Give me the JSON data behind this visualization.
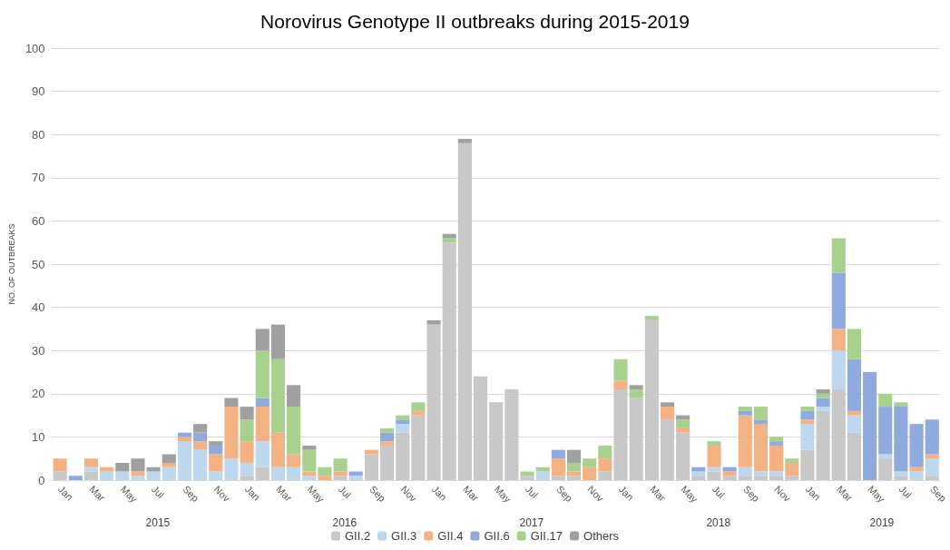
{
  "chart_data": {
    "type": "bar",
    "stacked": true,
    "title": "Norovirus Genotype II outbreaks during 2015-2019",
    "ylabel": "NO. OF OUTBREAKS",
    "categories": [
      "Jan",
      null,
      "Mar",
      null,
      "May",
      null,
      "Jul",
      null,
      "Sep",
      null,
      "Nov",
      null,
      "Jan",
      null,
      "Mar",
      null,
      "May",
      null,
      "Jul",
      null,
      "Sep",
      null,
      "Nov",
      null,
      "Jan",
      null,
      "Mar",
      null,
      "May",
      null,
      "Jul",
      null,
      "Sep",
      null,
      "Nov",
      null,
      "Jan",
      null,
      "Mar",
      null,
      "May",
      null,
      "Jul",
      null,
      "Sep",
      null,
      "Nov",
      null,
      "Jan",
      null,
      "Mar",
      null,
      "May",
      null,
      "Jul",
      null,
      "Sep"
    ],
    "annotations": [
      "2015",
      "2016",
      "2017",
      "2018",
      "2019"
    ],
    "series": [
      {
        "name": "GII.2",
        "color": "#c8c8c8",
        "values": [
          2,
          0,
          2,
          0,
          0,
          0,
          0,
          0,
          0,
          0,
          0,
          0,
          1,
          3,
          0,
          0,
          0,
          0,
          1,
          0,
          6,
          8,
          11,
          15,
          36,
          55,
          78,
          24,
          18,
          21,
          1,
          0,
          1,
          1,
          0,
          2,
          21,
          19,
          37,
          14,
          11,
          1,
          2,
          1,
          1,
          1,
          1,
          1,
          7,
          16,
          21,
          11,
          0,
          5,
          1,
          0,
          1
        ]
      },
      {
        "name": "GII.3",
        "color": "#bdd7ee",
        "values": [
          0,
          0,
          1,
          2,
          2,
          1,
          2,
          3,
          9,
          7,
          2,
          5,
          3,
          6,
          3,
          3,
          1,
          0,
          0,
          1,
          0,
          0,
          2,
          0,
          0,
          0,
          0,
          0,
          0,
          0,
          0,
          2,
          0,
          0,
          0,
          0,
          0,
          0,
          0,
          0,
          0,
          1,
          1,
          0,
          2,
          1,
          1,
          0,
          6,
          1,
          9,
          4,
          0,
          1,
          1,
          2,
          4
        ]
      },
      {
        "name": "GII.4",
        "color": "#f4b183",
        "values": [
          3,
          0,
          2,
          1,
          0,
          1,
          0,
          1,
          1,
          2,
          4,
          12,
          5,
          8,
          8,
          3,
          1,
          1,
          1,
          0,
          1,
          1,
          0,
          1,
          0,
          0,
          0,
          0,
          0,
          0,
          0,
          0,
          4,
          1,
          3,
          3,
          2,
          0,
          0,
          3,
          1,
          0,
          5,
          1,
          12,
          11,
          6,
          3,
          1,
          0,
          5,
          1,
          0,
          0,
          0,
          1,
          1
        ]
      },
      {
        "name": "GII.6",
        "color": "#8faadc",
        "values": [
          0,
          1,
          0,
          0,
          0,
          0,
          0,
          0,
          1,
          2,
          2,
          0,
          0,
          2,
          0,
          0,
          0,
          0,
          0,
          1,
          0,
          2,
          1,
          0,
          0,
          0,
          0,
          0,
          0,
          0,
          0,
          0,
          2,
          0,
          0,
          0,
          0,
          0,
          0,
          0,
          0,
          1,
          0,
          1,
          1,
          1,
          1,
          0,
          2,
          2,
          13,
          12,
          25,
          11,
          15,
          10,
          8
        ]
      },
      {
        "name": "GII.17",
        "color": "#a9d18e",
        "values": [
          0,
          0,
          0,
          0,
          0,
          0,
          0,
          0,
          0,
          0,
          0,
          0,
          5,
          11,
          17,
          11,
          5,
          2,
          3,
          0,
          0,
          1,
          1,
          2,
          0,
          1,
          0,
          0,
          0,
          0,
          1,
          1,
          0,
          2,
          2,
          3,
          5,
          2,
          1,
          0,
          2,
          0,
          1,
          0,
          1,
          3,
          1,
          1,
          1,
          1,
          8,
          7,
          0,
          3,
          1,
          0,
          0
        ]
      },
      {
        "name": "Others",
        "color": "#a0a0a0",
        "values": [
          0,
          0,
          0,
          0,
          2,
          3,
          1,
          2,
          0,
          2,
          1,
          2,
          3,
          5,
          8,
          5,
          1,
          0,
          0,
          0,
          0,
          0,
          0,
          0,
          1,
          1,
          1,
          0,
          0,
          0,
          0,
          0,
          0,
          3,
          0,
          0,
          0,
          1,
          0,
          1,
          1,
          0,
          0,
          0,
          0,
          0,
          0,
          0,
          0,
          1,
          0,
          0,
          0,
          0,
          0,
          0,
          0
        ]
      }
    ],
    "ylim": [
      0,
      100
    ],
    "yticks": [
      0,
      10,
      20,
      30,
      40,
      50,
      60,
      70,
      80,
      90,
      100
    ],
    "grid": "y",
    "legend": "bottom"
  }
}
